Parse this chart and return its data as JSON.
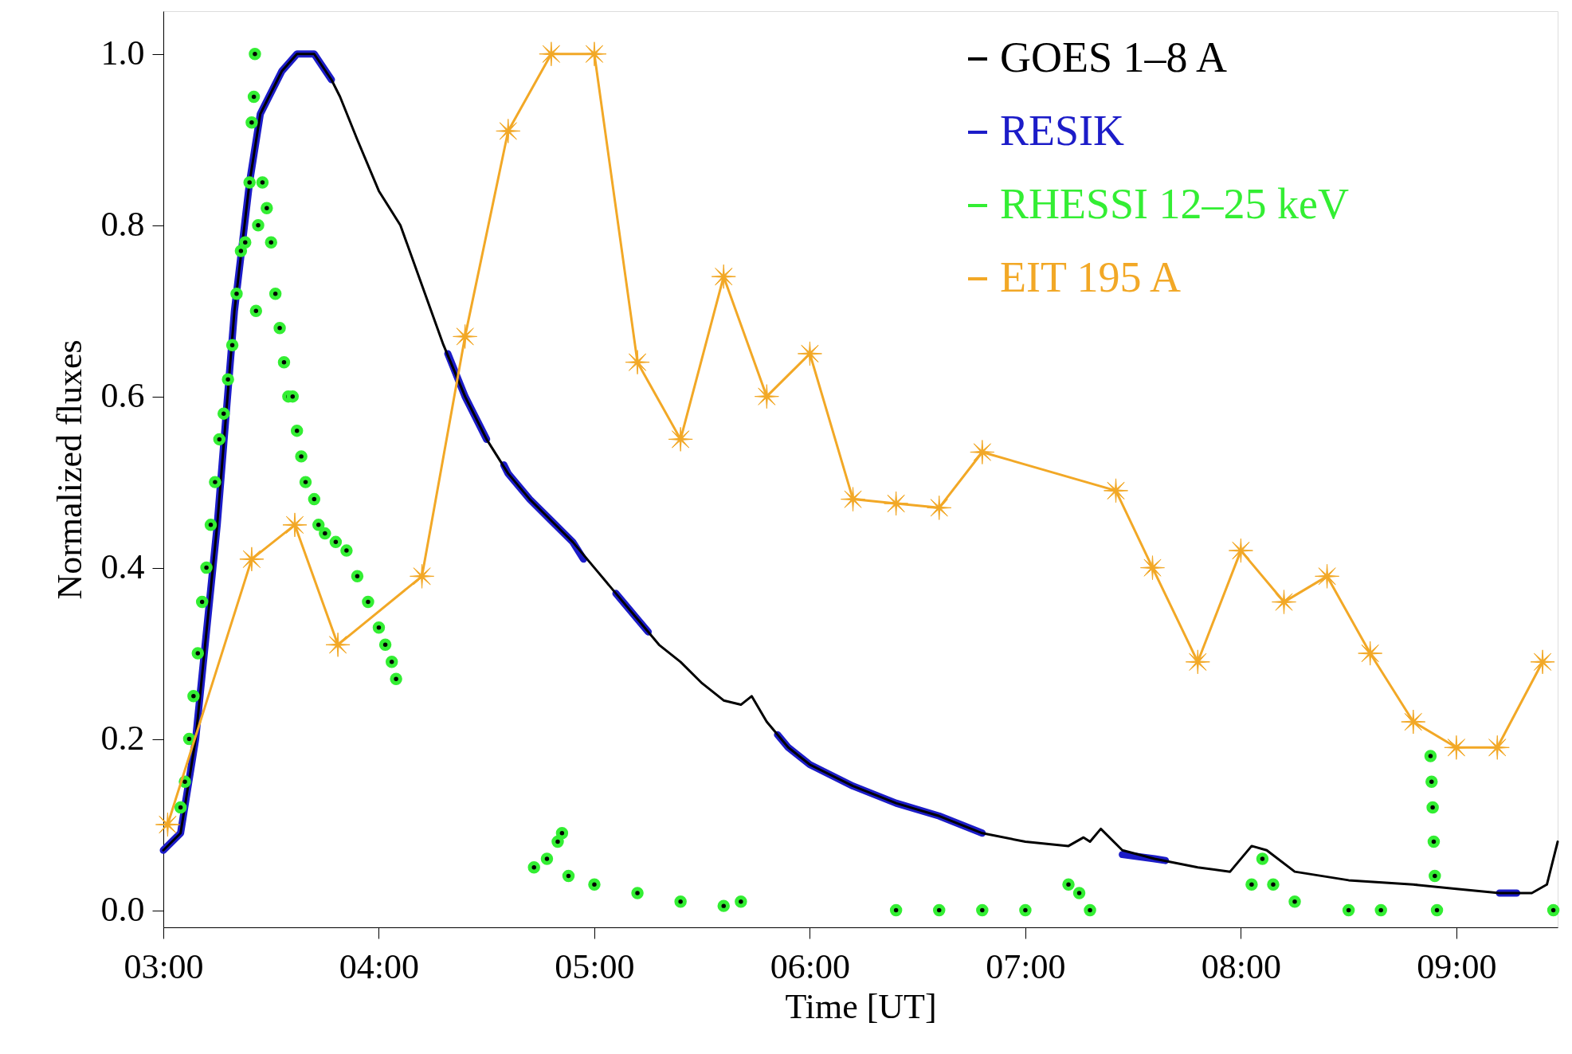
{
  "chart_data": {
    "type": "line",
    "xlabel": "Time [UT]",
    "ylabel": "Normalized fluxes",
    "xlim": [
      3,
      9.47
    ],
    "ylim": [
      -0.02,
      1.05
    ],
    "xticks": [
      {
        "value": 3,
        "label": "03:00"
      },
      {
        "value": 4,
        "label": "04:00"
      },
      {
        "value": 5,
        "label": "05:00"
      },
      {
        "value": 6,
        "label": "06:00"
      },
      {
        "value": 7,
        "label": "07:00"
      },
      {
        "value": 8,
        "label": "08:00"
      },
      {
        "value": 9,
        "label": "09:00"
      }
    ],
    "yticks": [
      {
        "value": 0,
        "label": "0.0"
      },
      {
        "value": 0.2,
        "label": "0.2"
      },
      {
        "value": 0.4,
        "label": "0.4"
      },
      {
        "value": 0.6,
        "label": "0.6"
      },
      {
        "value": 0.8,
        "label": "0.8"
      },
      {
        "value": 1,
        "label": "1.0"
      }
    ],
    "grid": false,
    "legend": "top right",
    "series": [
      {
        "name": "GOES 1–8 A",
        "marker": "none",
        "color": "#000000",
        "x": [
          3.0,
          3.08,
          3.15,
          3.25,
          3.33,
          3.4,
          3.45,
          3.55,
          3.62,
          3.7,
          3.78,
          3.82,
          3.9,
          4.0,
          4.1,
          4.2,
          4.3,
          4.4,
          4.5,
          4.6,
          4.7,
          4.8,
          4.9,
          5.0,
          5.1,
          5.2,
          5.3,
          5.4,
          5.5,
          5.6,
          5.68,
          5.73,
          5.8,
          5.9,
          6.0,
          6.2,
          6.4,
          6.6,
          6.8,
          7.0,
          7.2,
          7.27,
          7.3,
          7.35,
          7.45,
          7.6,
          7.8,
          7.95,
          8.05,
          8.12,
          8.25,
          8.5,
          8.8,
          9.0,
          9.2,
          9.35,
          9.42,
          9.47
        ],
        "values": [
          0.07,
          0.09,
          0.2,
          0.45,
          0.7,
          0.85,
          0.93,
          0.98,
          1.0,
          1.0,
          0.97,
          0.95,
          0.9,
          0.84,
          0.8,
          0.73,
          0.66,
          0.6,
          0.55,
          0.51,
          0.48,
          0.455,
          0.43,
          0.4,
          0.37,
          0.34,
          0.31,
          0.29,
          0.265,
          0.245,
          0.24,
          0.25,
          0.22,
          0.19,
          0.17,
          0.145,
          0.125,
          0.11,
          0.09,
          0.08,
          0.075,
          0.085,
          0.08,
          0.095,
          0.07,
          0.06,
          0.05,
          0.045,
          0.075,
          0.07,
          0.045,
          0.035,
          0.03,
          0.025,
          0.02,
          0.02,
          0.03,
          0.08
        ]
      },
      {
        "name": "RESIK",
        "marker": "none",
        "color": "#1c1cc8",
        "x": [
          3.0,
          3.08,
          3.15,
          3.25,
          3.33,
          3.4,
          3.45,
          3.55,
          3.62,
          3.7,
          3.78,
          3.8,
          4.32,
          4.4,
          4.5,
          4.52,
          4.58,
          4.6,
          4.7,
          4.8,
          4.9,
          4.95,
          5.0,
          5.1,
          5.2,
          5.25,
          5.3,
          5.85,
          5.9,
          6.0,
          6.2,
          6.4,
          6.6,
          6.8,
          6.9,
          7.45,
          7.6,
          7.65,
          7.7,
          9.2,
          9.28
        ],
        "values": [
          0.07,
          0.09,
          0.2,
          0.45,
          0.7,
          0.85,
          0.93,
          0.98,
          1.0,
          1.0,
          0.97,
          null,
          0.65,
          0.6,
          0.55,
          null,
          0.52,
          0.51,
          0.48,
          0.455,
          0.43,
          0.41,
          null,
          0.37,
          0.34,
          0.325,
          null,
          0.205,
          0.19,
          0.17,
          0.145,
          0.125,
          0.11,
          0.09,
          null,
          0.065,
          0.06,
          0.058,
          null,
          0.02,
          0.02
        ]
      },
      {
        "name": "RHESSI 12–25 keV",
        "type": "scatter",
        "marker": "circle",
        "color": "#33ee33",
        "x": [
          3.08,
          3.1,
          3.12,
          3.14,
          3.16,
          3.18,
          3.2,
          3.22,
          3.24,
          3.26,
          3.28,
          3.3,
          3.32,
          3.34,
          3.36,
          3.38,
          3.4,
          3.41,
          3.42,
          3.425,
          3.43,
          3.44,
          3.46,
          3.48,
          3.5,
          3.52,
          3.54,
          3.56,
          3.58,
          3.6,
          3.62,
          3.64,
          3.66,
          3.7,
          3.72,
          3.75,
          3.8,
          3.85,
          3.9,
          3.95,
          4.0,
          4.03,
          4.06,
          4.08,
          4.72,
          4.78,
          4.83,
          4.85,
          4.88,
          5.0,
          5.2,
          5.4,
          5.6,
          5.68,
          6.4,
          6.6,
          6.8,
          7.0,
          7.2,
          7.25,
          7.3,
          8.05,
          8.1,
          8.15,
          8.25,
          8.5,
          8.65,
          8.88,
          8.885,
          8.89,
          8.895,
          8.9,
          8.91,
          9.45
        ],
        "values": [
          0.12,
          0.15,
          0.2,
          0.25,
          0.3,
          0.36,
          0.4,
          0.45,
          0.5,
          0.55,
          0.58,
          0.62,
          0.66,
          0.72,
          0.77,
          0.78,
          0.85,
          0.92,
          0.95,
          1.0,
          0.7,
          0.8,
          0.85,
          0.82,
          0.78,
          0.72,
          0.68,
          0.64,
          0.6,
          0.6,
          0.56,
          0.53,
          0.5,
          0.48,
          0.45,
          0.44,
          0.43,
          0.42,
          0.39,
          0.36,
          0.33,
          0.31,
          0.29,
          0.27,
          0.05,
          0.06,
          0.08,
          0.09,
          0.04,
          0.03,
          0.02,
          0.01,
          0.005,
          0.01,
          0.0,
          0.0,
          0.0,
          0.0,
          0.03,
          0.02,
          0.0,
          0.03,
          0.06,
          0.03,
          0.01,
          0.0,
          0.0,
          0.18,
          0.15,
          0.12,
          0.08,
          0.04,
          0.0,
          0.0
        ]
      },
      {
        "name": "EIT 195 A",
        "marker": "cross",
        "color": "#f2a826",
        "x": [
          3.02,
          3.41,
          3.61,
          3.81,
          4.2,
          4.4,
          4.6,
          4.8,
          5.0,
          5.2,
          5.4,
          5.6,
          5.8,
          6.0,
          6.2,
          6.4,
          6.6,
          6.8,
          7.42,
          7.59,
          7.8,
          8.0,
          8.2,
          8.4,
          8.6,
          8.8,
          9.0,
          9.19,
          9.4
        ],
        "values": [
          0.1,
          0.41,
          0.45,
          0.31,
          0.39,
          0.67,
          0.91,
          1.0,
          1.0,
          0.64,
          0.55,
          0.74,
          0.6,
          0.65,
          0.48,
          0.475,
          0.47,
          0.535,
          0.49,
          0.4,
          0.29,
          0.42,
          0.36,
          0.39,
          0.3,
          0.22,
          0.19,
          0.19,
          0.29
        ]
      }
    ]
  }
}
